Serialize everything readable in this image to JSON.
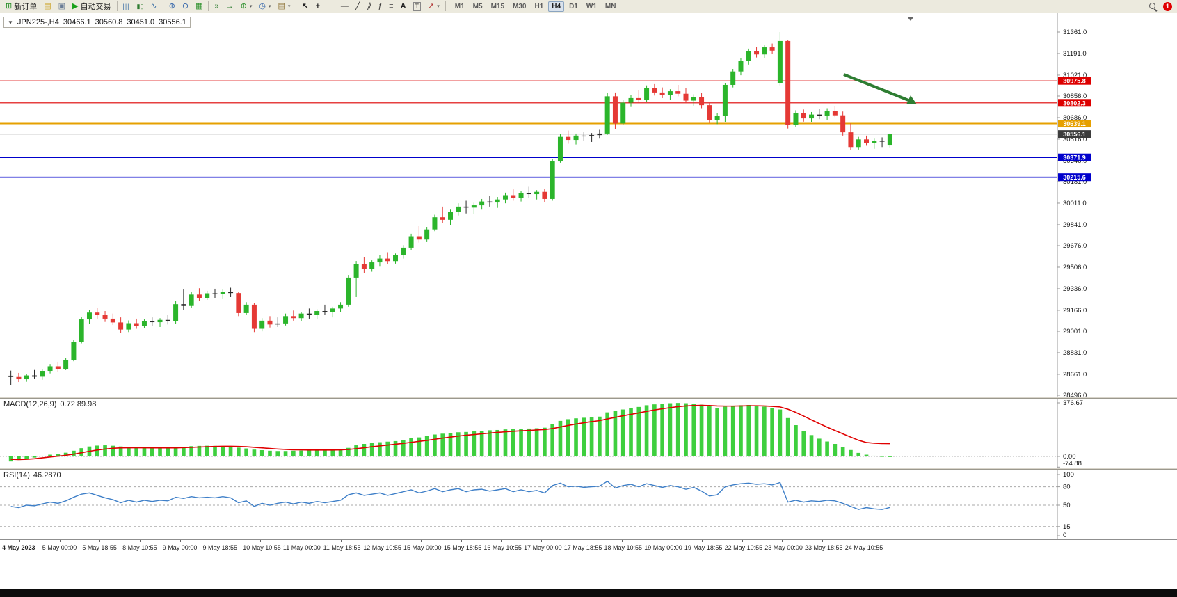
{
  "toolbar": {
    "new_order_label": "新订单",
    "auto_trading_label": "自动交易",
    "timeframes": [
      "M1",
      "M5",
      "M15",
      "M30",
      "H1",
      "H4",
      "D1",
      "W1",
      "MN"
    ],
    "active_timeframe": "H4",
    "notification_count": "1"
  },
  "icons": {
    "dropdown": "▼",
    "new_order": "⊞",
    "market_watch": "▤",
    "data_window": "▣",
    "auto_trading_play": "▶",
    "bar_chart": "|||",
    "candles": "▮▯",
    "line_chart": "∿",
    "zoom_in": "⊕",
    "zoom_out": "⊖",
    "tile_windows": "▦",
    "auto_scroll": "»",
    "chart_shift": "→",
    "indicators": "⊕",
    "clock": "◷",
    "template": "▤",
    "caret": "▾",
    "cursor": "↖",
    "crosshair": "+",
    "vline": "|",
    "hline": "—",
    "trendline": "╱",
    "channel": "∥",
    "fibonacci": "ƒ",
    "shapes": "≡",
    "text": "A",
    "text_label": "T",
    "arrow_tool": "↗"
  },
  "chart": {
    "header": {
      "symbol_period": "JPN225-,H4",
      "open": "30466.1",
      "high": "30560.8",
      "low": "30451.0",
      "close": "30556.1"
    },
    "hlines": [
      {
        "price": 30975.8,
        "label": "30975.8",
        "color": "#dd0000",
        "width": 1.2
      },
      {
        "price": 30802.3,
        "label": "30802.3",
        "color": "#dd0000",
        "width": 1.2
      },
      {
        "price": 30639.1,
        "label": "30639.1",
        "color": "#e6a000",
        "width": 2
      },
      {
        "price": 30371.9,
        "label": "30371.9",
        "color": "#0000cc",
        "width": 1.6
      },
      {
        "price": 30215.6,
        "label": "30215.6",
        "color": "#0000cc",
        "width": 1.6
      }
    ],
    "current_price": {
      "price": 30556.1,
      "label": "30556.1",
      "color": "#3c3c3c"
    },
    "arrow": {
      "color": "#2e7d32"
    }
  },
  "chart_data": {
    "type": "candlestick",
    "symbol": "JPN225-",
    "timeframe": "H4",
    "y_range": [
      28496,
      31361
    ],
    "bull_color": "#2bb52b",
    "bear_color": "#e53935",
    "doji_color": "#2a2a2a",
    "price_axis": [
      "31361.0",
      "31191.0",
      "31021.0",
      "30856.0",
      "30686.0",
      "30516.0",
      "30346.0",
      "30181.0",
      "30011.0",
      "29841.0",
      "29676.0",
      "29506.0",
      "29336.0",
      "29166.0",
      "29001.0",
      "28831.0",
      "28661.0",
      "28496.0"
    ],
    "x_labels": [
      "4 May 2023",
      "5 May 00:00",
      "5 May 18:55",
      "8 May 10:55",
      "9 May 00:00",
      "9 May 18:55",
      "10 May 10:55",
      "11 May 00:00",
      "11 May 18:55",
      "12 May 10:55",
      "15 May 00:00",
      "15 May 18:55",
      "16 May 10:55",
      "17 May 00:00",
      "17 May 18:55",
      "18 May 10:55",
      "19 May 00:00",
      "19 May 18:55",
      "22 May 10:55",
      "23 May 00:00",
      "23 May 18:55",
      "24 May 10:55"
    ],
    "ohlc": [
      [
        28650,
        28690,
        28575,
        28640
      ],
      [
        28640,
        28672,
        28600,
        28622
      ],
      [
        28622,
        28665,
        28602,
        28652
      ],
      [
        28652,
        28695,
        28628,
        28642
      ],
      [
        28642,
        28700,
        28618,
        28688
      ],
      [
        28688,
        28742,
        28668,
        28724
      ],
      [
        28724,
        28760,
        28682,
        28704
      ],
      [
        28704,
        28790,
        28694,
        28774
      ],
      [
        28774,
        28935,
        28764,
        28918
      ],
      [
        28918,
        29115,
        28905,
        29094
      ],
      [
        29094,
        29170,
        29058,
        29148
      ],
      [
        29148,
        29186,
        29100,
        29128
      ],
      [
        29128,
        29160,
        29074,
        29100
      ],
      [
        29100,
        29140,
        29050,
        29070
      ],
      [
        29070,
        29110,
        28990,
        29014
      ],
      [
        29014,
        29086,
        28994,
        29064
      ],
      [
        29064,
        29100,
        29020,
        29044
      ],
      [
        29044,
        29094,
        29024,
        29080
      ],
      [
        29080,
        29110,
        29040,
        29072
      ],
      [
        29072,
        29104,
        29034,
        29090
      ],
      [
        29090,
        29130,
        29054,
        29078
      ],
      [
        29078,
        29240,
        29060,
        29214
      ],
      [
        29214,
        29330,
        29170,
        29200
      ],
      [
        29200,
        29310,
        29184,
        29290
      ],
      [
        29290,
        29340,
        29240,
        29264
      ],
      [
        29264,
        29320,
        29248,
        29300
      ],
      [
        29300,
        29336,
        29260,
        29292
      ],
      [
        29292,
        29330,
        29254,
        29310
      ],
      [
        29310,
        29344,
        29270,
        29302
      ],
      [
        29302,
        29312,
        29120,
        29144
      ],
      [
        29144,
        29230,
        29130,
        29210
      ],
      [
        29210,
        29226,
        28994,
        29020
      ],
      [
        29020,
        29104,
        29000,
        29084
      ],
      [
        29084,
        29120,
        29030,
        29054
      ],
      [
        29054,
        29110,
        29034,
        29062
      ],
      [
        29062,
        29140,
        29046,
        29120
      ],
      [
        29120,
        29164,
        29084,
        29104
      ],
      [
        29104,
        29154,
        29080,
        29140
      ],
      [
        29140,
        29180,
        29100,
        29132
      ],
      [
        29132,
        29174,
        29094,
        29160
      ],
      [
        29160,
        29210,
        29130,
        29150
      ],
      [
        29150,
        29194,
        29110,
        29180
      ],
      [
        29180,
        29230,
        29150,
        29210
      ],
      [
        29210,
        29445,
        29194,
        29424
      ],
      [
        29424,
        29555,
        29270,
        29530
      ],
      [
        29530,
        29584,
        29460,
        29494
      ],
      [
        29494,
        29560,
        29470,
        29544
      ],
      [
        29544,
        29600,
        29510,
        29574
      ],
      [
        29574,
        29624,
        29530,
        29554
      ],
      [
        29554,
        29614,
        29534,
        29600
      ],
      [
        29600,
        29680,
        29574,
        29660
      ],
      [
        29660,
        29770,
        29640,
        29750
      ],
      [
        29750,
        29830,
        29700,
        29724
      ],
      [
        29724,
        29824,
        29704,
        29804
      ],
      [
        29804,
        29920,
        29790,
        29900
      ],
      [
        29900,
        29984,
        29854,
        29880
      ],
      [
        29880,
        29960,
        29840,
        29940
      ],
      [
        29940,
        30010,
        29914,
        29984
      ],
      [
        29984,
        30030,
        29930,
        29976
      ],
      [
        29976,
        30014,
        29924,
        29994
      ],
      [
        29994,
        30044,
        29960,
        30024
      ],
      [
        30024,
        30070,
        29984,
        30016
      ],
      [
        30016,
        30060,
        29974,
        30040
      ],
      [
        30040,
        30094,
        30010,
        30074
      ],
      [
        30074,
        30120,
        30030,
        30050
      ],
      [
        30050,
        30104,
        30024,
        30090
      ],
      [
        30090,
        30140,
        30054,
        30082
      ],
      [
        30082,
        30114,
        30040,
        30100
      ],
      [
        30100,
        30124,
        30020,
        30044
      ],
      [
        30044,
        30360,
        30030,
        30340
      ],
      [
        30340,
        30555,
        30330,
        30534
      ],
      [
        30534,
        30584,
        30480,
        30510
      ],
      [
        30510,
        30560,
        30474,
        30544
      ],
      [
        30544,
        30574,
        30504,
        30538
      ],
      [
        30538,
        30564,
        30494,
        30548
      ],
      [
        30548,
        30590,
        30520,
        30560
      ],
      [
        30560,
        30880,
        30550,
        30854
      ],
      [
        30854,
        30884,
        30594,
        30640
      ],
      [
        30640,
        30824,
        30630,
        30804
      ],
      [
        30804,
        30864,
        30770,
        30840
      ],
      [
        30840,
        30904,
        30800,
        30824
      ],
      [
        30824,
        30940,
        30810,
        30920
      ],
      [
        30920,
        30950,
        30860,
        30884
      ],
      [
        30884,
        30924,
        30840,
        30864
      ],
      [
        30864,
        30910,
        30824,
        30894
      ],
      [
        30894,
        30944,
        30854,
        30874
      ],
      [
        30874,
        30920,
        30800,
        30820
      ],
      [
        30820,
        30870,
        30780,
        30850
      ],
      [
        30850,
        30880,
        30760,
        30784
      ],
      [
        30784,
        30800,
        30644,
        30664
      ],
      [
        30664,
        30724,
        30634,
        30700
      ],
      [
        30700,
        30960,
        30650,
        30944
      ],
      [
        30944,
        31070,
        30924,
        31050
      ],
      [
        31050,
        31155,
        31020,
        31134
      ],
      [
        31134,
        31230,
        31104,
        31210
      ],
      [
        31210,
        31244,
        31160,
        31184
      ],
      [
        31184,
        31260,
        31154,
        31240
      ],
      [
        31240,
        31270,
        31190,
        31214
      ],
      [
        30960,
        31361,
        30940,
        31290
      ],
      [
        31290,
        31300,
        30600,
        30630
      ],
      [
        30630,
        30744,
        30614,
        30720
      ],
      [
        30720,
        30750,
        30654,
        30680
      ],
      [
        30680,
        30730,
        30650,
        30710
      ],
      [
        30710,
        30754,
        30674,
        30702
      ],
      [
        30702,
        30760,
        30664,
        30740
      ],
      [
        30740,
        30774,
        30690,
        30704
      ],
      [
        30704,
        30734,
        30544,
        30570
      ],
      [
        30570,
        30640,
        30430,
        30454
      ],
      [
        30454,
        30534,
        30434,
        30514
      ],
      [
        30514,
        30544,
        30464,
        30484
      ],
      [
        30484,
        30520,
        30440,
        30504
      ],
      [
        30504,
        30530,
        30454,
        30496
      ],
      [
        30466.1,
        30560.8,
        30451.0,
        30556.1
      ]
    ],
    "macd": {
      "label": "MACD(12,26,9)",
      "value_text": "0.72 89.98",
      "axis": [
        "376.67",
        "0.00",
        "-74.88"
      ],
      "range": [
        -74.88,
        376.67
      ],
      "hist_color": "#3ecf3e",
      "signal_color": "#e00000",
      "hist": [
        -35,
        -25,
        -15,
        -8,
        5,
        12,
        18,
        26,
        40,
        58,
        70,
        76,
        78,
        75,
        70,
        66,
        62,
        60,
        58,
        57,
        58,
        62,
        68,
        72,
        74,
        75,
        74,
        73,
        70,
        62,
        56,
        48,
        44,
        40,
        38,
        38,
        40,
        41,
        42,
        44,
        45,
        46,
        48,
        60,
        78,
        88,
        94,
        100,
        104,
        108,
        116,
        128,
        134,
        142,
        154,
        160,
        164,
        170,
        172,
        176,
        180,
        184,
        186,
        190,
        192,
        194,
        196,
        198,
        202,
        225,
        250,
        262,
        268,
        272,
        276,
        280,
        310,
        322,
        330,
        338,
        348,
        360,
        366,
        370,
        374,
        376,
        374,
        370,
        364,
        352,
        342,
        350,
        356,
        360,
        362,
        358,
        350,
        340,
        330,
        270,
        220,
        180,
        150,
        125,
        105,
        88,
        68,
        45,
        25,
        12,
        5,
        2,
        0.72
      ],
      "signal": [
        -20,
        -22,
        -20,
        -16,
        -10,
        -4,
        2,
        8,
        16,
        26,
        36,
        45,
        52,
        57,
        60,
        61,
        61,
        61,
        60,
        60,
        60,
        60,
        62,
        64,
        66,
        68,
        70,
        71,
        71,
        70,
        68,
        64,
        60,
        56,
        52,
        49,
        47,
        46,
        45,
        45,
        45,
        45,
        46,
        49,
        54,
        61,
        68,
        74,
        80,
        86,
        92,
        99,
        106,
        113,
        121,
        129,
        136,
        143,
        149,
        154,
        159,
        164,
        169,
        173,
        177,
        180,
        183,
        186,
        189,
        196,
        207,
        218,
        228,
        237,
        245,
        252,
        264,
        275,
        286,
        296,
        306,
        317,
        327,
        335,
        343,
        350,
        355,
        358,
        359,
        358,
        355,
        354,
        354,
        355,
        356,
        356,
        355,
        352,
        348,
        332,
        310,
        284,
        257,
        231,
        206,
        182,
        159,
        136,
        114,
        98,
        93,
        91,
        89.98
      ]
    },
    "rsi": {
      "label": "RSI(14)",
      "value_text": "46.2870",
      "axis": [
        "100",
        "80",
        "50",
        "15",
        "0"
      ],
      "levels": [
        80,
        50,
        15
      ],
      "range": [
        0,
        100
      ],
      "color": "#3e7fc8",
      "values": [
        48,
        46,
        50,
        49,
        52,
        55,
        53,
        57,
        63,
        68,
        70,
        66,
        62,
        59,
        54,
        58,
        55,
        58,
        56,
        58,
        57,
        63,
        61,
        64,
        62,
        63,
        62,
        64,
        62,
        54,
        57,
        48,
        53,
        50,
        53,
        55,
        52,
        55,
        53,
        56,
        54,
        56,
        58,
        67,
        70,
        66,
        68,
        70,
        66,
        69,
        72,
        75,
        70,
        73,
        77,
        72,
        75,
        77,
        72,
        75,
        76,
        73,
        75,
        77,
        72,
        75,
        72,
        74,
        70,
        82,
        86,
        80,
        81,
        79,
        80,
        81,
        89,
        78,
        82,
        84,
        80,
        85,
        82,
        79,
        82,
        80,
        76,
        79,
        73,
        65,
        67,
        80,
        83,
        85,
        86,
        84,
        85,
        83,
        87,
        55,
        58,
        55,
        57,
        56,
        58,
        57,
        53,
        48,
        43,
        46,
        44,
        43,
        46.29
      ]
    }
  }
}
